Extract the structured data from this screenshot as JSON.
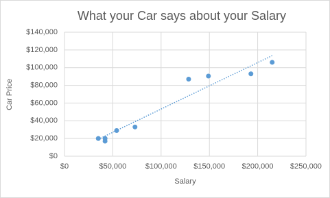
{
  "chart_data": {
    "type": "scatter",
    "title": "What your Car says about your Salary",
    "x_label": "Salary",
    "y_label": "Car Price",
    "series": [
      {
        "color": "#5b9bd5",
        "x": [
          35000,
          42000,
          42000,
          54000,
          73000,
          128500,
          149000,
          193000,
          215000
        ],
        "values": [
          20000,
          20000,
          17000,
          29000,
          33000,
          87000,
          90500,
          93000,
          106000
        ]
      }
    ],
    "trendline": true,
    "xlim": [
      0,
      250000
    ],
    "xticks": [
      {
        "value": 0,
        "label": "$0"
      },
      {
        "value": 50000,
        "label": "$50,000"
      },
      {
        "value": 100000,
        "label": "$100,000"
      },
      {
        "value": 150000,
        "label": "$150,000"
      },
      {
        "value": 200000,
        "label": "$200,000"
      },
      {
        "value": 250000,
        "label": "$250,000"
      }
    ],
    "ylim": [
      0,
      140000
    ],
    "yticks": [
      {
        "value": 0,
        "label": "$0"
      },
      {
        "value": 20000,
        "label": "$20,000"
      },
      {
        "value": 40000,
        "label": "$40,000"
      },
      {
        "value": 60000,
        "label": "$60,000"
      },
      {
        "value": 80000,
        "label": "$80,000"
      },
      {
        "value": 100000,
        "label": "$100,000"
      },
      {
        "value": 120000,
        "label": "$120,000"
      },
      {
        "value": 140000,
        "label": "$140,000"
      }
    ],
    "grid": true
  }
}
